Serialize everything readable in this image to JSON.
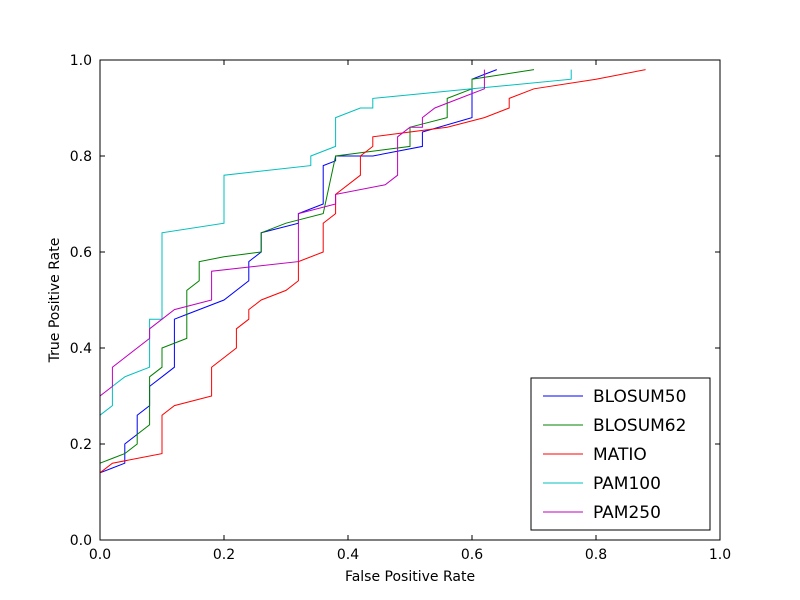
{
  "chart_data": {
    "type": "line",
    "title": "",
    "xlabel": "False Positive Rate",
    "ylabel": "True Positive Rate",
    "xlim": [
      0,
      1
    ],
    "ylim": [
      0,
      1
    ],
    "x_ticks": [
      "0.0",
      "0.2",
      "0.4",
      "0.6",
      "0.8",
      "1.0"
    ],
    "y_ticks": [
      "0.0",
      "0.2",
      "0.4",
      "0.6",
      "0.8",
      "1.0"
    ],
    "grid": false,
    "legend_position": "lower-right",
    "series": [
      {
        "name": "BLOSUM50",
        "color": "#0000ff",
        "points": [
          [
            0,
            0.14
          ],
          [
            0.02,
            0.15
          ],
          [
            0.04,
            0.16
          ],
          [
            0.04,
            0.2
          ],
          [
            0.06,
            0.22
          ],
          [
            0.06,
            0.26
          ],
          [
            0.08,
            0.28
          ],
          [
            0.08,
            0.32
          ],
          [
            0.1,
            0.34
          ],
          [
            0.12,
            0.36
          ],
          [
            0.12,
            0.46
          ],
          [
            0.14,
            0.47
          ],
          [
            0.2,
            0.5
          ],
          [
            0.24,
            0.54
          ],
          [
            0.24,
            0.58
          ],
          [
            0.26,
            0.6
          ],
          [
            0.26,
            0.64
          ],
          [
            0.32,
            0.66
          ],
          [
            0.32,
            0.68
          ],
          [
            0.36,
            0.7
          ],
          [
            0.36,
            0.78
          ],
          [
            0.38,
            0.79
          ],
          [
            0.38,
            0.8
          ],
          [
            0.4,
            0.8
          ],
          [
            0.44,
            0.8
          ],
          [
            0.52,
            0.82
          ],
          [
            0.52,
            0.85
          ],
          [
            0.6,
            0.88
          ],
          [
            0.6,
            0.96
          ],
          [
            0.62,
            0.97
          ],
          [
            0.64,
            0.98
          ]
        ]
      },
      {
        "name": "BLOSUM62",
        "color": "#008000",
        "points": [
          [
            0,
            0.16
          ],
          [
            0.02,
            0.17
          ],
          [
            0.04,
            0.18
          ],
          [
            0.06,
            0.2
          ],
          [
            0.06,
            0.22
          ],
          [
            0.08,
            0.24
          ],
          [
            0.08,
            0.34
          ],
          [
            0.1,
            0.36
          ],
          [
            0.1,
            0.4
          ],
          [
            0.14,
            0.42
          ],
          [
            0.14,
            0.52
          ],
          [
            0.16,
            0.54
          ],
          [
            0.16,
            0.58
          ],
          [
            0.2,
            0.59
          ],
          [
            0.26,
            0.6
          ],
          [
            0.26,
            0.64
          ],
          [
            0.3,
            0.66
          ],
          [
            0.36,
            0.68
          ],
          [
            0.38,
            0.8
          ],
          [
            0.5,
            0.82
          ],
          [
            0.5,
            0.86
          ],
          [
            0.56,
            0.88
          ],
          [
            0.56,
            0.92
          ],
          [
            0.6,
            0.94
          ],
          [
            0.6,
            0.96
          ],
          [
            0.7,
            0.98
          ]
        ]
      },
      {
        "name": "MATIO",
        "color": "#ff0000",
        "points": [
          [
            0,
            0.14
          ],
          [
            0.02,
            0.16
          ],
          [
            0.1,
            0.18
          ],
          [
            0.1,
            0.26
          ],
          [
            0.12,
            0.28
          ],
          [
            0.18,
            0.3
          ],
          [
            0.18,
            0.36
          ],
          [
            0.22,
            0.4
          ],
          [
            0.22,
            0.44
          ],
          [
            0.24,
            0.46
          ],
          [
            0.24,
            0.48
          ],
          [
            0.26,
            0.5
          ],
          [
            0.3,
            0.52
          ],
          [
            0.32,
            0.54
          ],
          [
            0.32,
            0.58
          ],
          [
            0.36,
            0.6
          ],
          [
            0.36,
            0.66
          ],
          [
            0.38,
            0.68
          ],
          [
            0.38,
            0.72
          ],
          [
            0.42,
            0.76
          ],
          [
            0.42,
            0.8
          ],
          [
            0.44,
            0.82
          ],
          [
            0.44,
            0.84
          ],
          [
            0.5,
            0.85
          ],
          [
            0.56,
            0.86
          ],
          [
            0.62,
            0.88
          ],
          [
            0.66,
            0.9
          ],
          [
            0.66,
            0.92
          ],
          [
            0.7,
            0.94
          ],
          [
            0.8,
            0.96
          ],
          [
            0.88,
            0.98
          ]
        ]
      },
      {
        "name": "PAM100",
        "color": "#00bfbf",
        "points": [
          [
            0,
            0.26
          ],
          [
            0.02,
            0.28
          ],
          [
            0.02,
            0.32
          ],
          [
            0.04,
            0.34
          ],
          [
            0.08,
            0.36
          ],
          [
            0.08,
            0.46
          ],
          [
            0.1,
            0.46
          ],
          [
            0.1,
            0.64
          ],
          [
            0.2,
            0.66
          ],
          [
            0.2,
            0.76
          ],
          [
            0.34,
            0.78
          ],
          [
            0.34,
            0.8
          ],
          [
            0.38,
            0.82
          ],
          [
            0.38,
            0.88
          ],
          [
            0.42,
            0.9
          ],
          [
            0.44,
            0.9
          ],
          [
            0.44,
            0.92
          ],
          [
            0.6,
            0.94
          ],
          [
            0.76,
            0.96
          ],
          [
            0.76,
            0.98
          ]
        ]
      },
      {
        "name": "PAM250",
        "color": "#bf00bf",
        "points": [
          [
            0,
            0.3
          ],
          [
            0.02,
            0.32
          ],
          [
            0.02,
            0.36
          ],
          [
            0.08,
            0.42
          ],
          [
            0.08,
            0.44
          ],
          [
            0.12,
            0.48
          ],
          [
            0.18,
            0.5
          ],
          [
            0.18,
            0.56
          ],
          [
            0.32,
            0.58
          ],
          [
            0.32,
            0.68
          ],
          [
            0.38,
            0.7
          ],
          [
            0.38,
            0.72
          ],
          [
            0.46,
            0.74
          ],
          [
            0.48,
            0.76
          ],
          [
            0.48,
            0.84
          ],
          [
            0.5,
            0.86
          ],
          [
            0.52,
            0.86
          ],
          [
            0.52,
            0.88
          ],
          [
            0.54,
            0.9
          ],
          [
            0.58,
            0.92
          ],
          [
            0.62,
            0.94
          ],
          [
            0.62,
            0.98
          ]
        ]
      }
    ]
  }
}
